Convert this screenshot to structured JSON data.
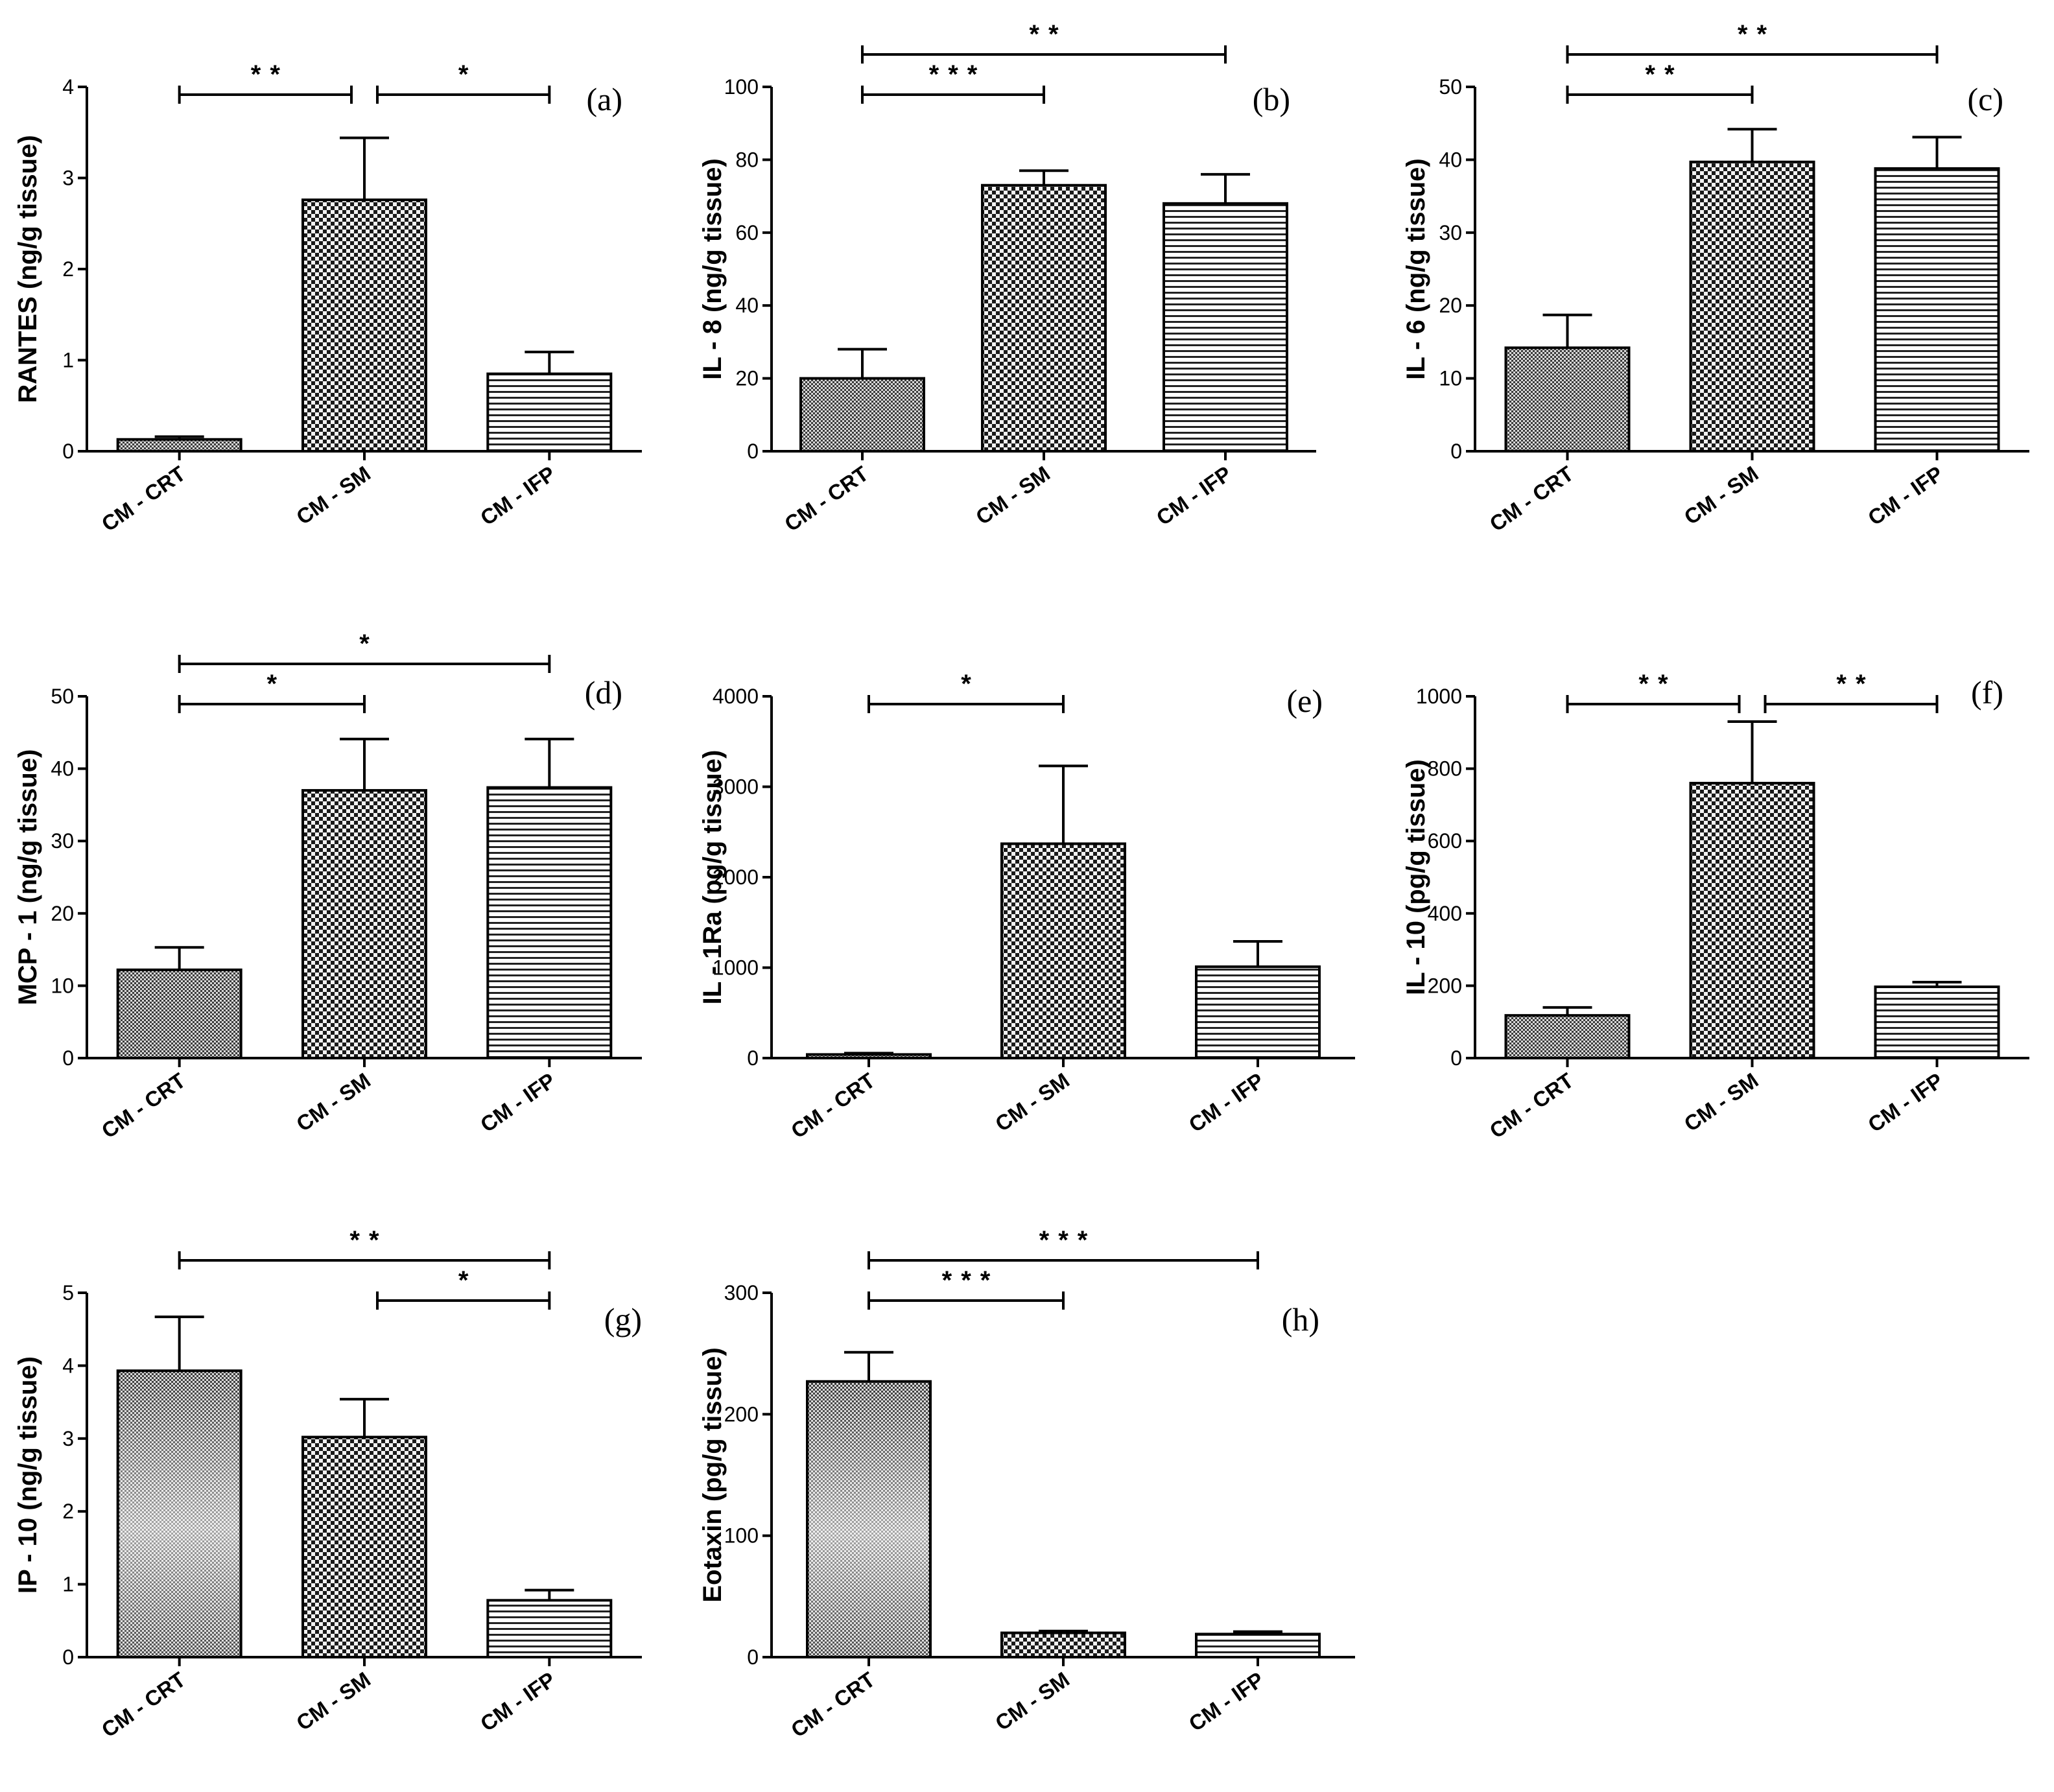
{
  "colors": {
    "ink": "#000000",
    "background": "#ffffff",
    "checker_dark": "#1a1a1a",
    "checker_light": "#f2f2f2",
    "hline": "#222222"
  },
  "chart_data": [
    {
      "type": "bar",
      "panel": "(a)",
      "ylabel": "RANTES (ng/g tissue)",
      "categories": [
        "CM - CRT",
        "CM - SM",
        "CM - IFP"
      ],
      "values": [
        0.13,
        2.76,
        0.85
      ],
      "errors": [
        0.03,
        0.68,
        0.24
      ],
      "ylim": [
        0,
        4
      ],
      "yticks": [
        "0",
        "1",
        "2",
        "3",
        "4"
      ],
      "significance": [
        {
          "from": 0,
          "to": 1,
          "label": "**"
        },
        {
          "from": 1,
          "to": 2,
          "label": "*"
        }
      ]
    },
    {
      "type": "bar",
      "panel": "(b)",
      "ylabel": "IL - 8 (ng/g tissue)",
      "categories": [
        "CM - CRT",
        "CM - SM",
        "CM - IFP"
      ],
      "values": [
        20,
        73,
        68
      ],
      "errors": [
        8,
        4,
        8
      ],
      "ylim": [
        0,
        100
      ],
      "yticks": [
        "0",
        "20",
        "40",
        "60",
        "80",
        "100"
      ],
      "significance": [
        {
          "from": 0,
          "to": 1,
          "label": "***"
        },
        {
          "from": 0,
          "to": 2,
          "label": "**"
        }
      ]
    },
    {
      "type": "bar",
      "panel": "(c)",
      "ylabel": "IL - 6 (ng/g tissue)",
      "categories": [
        "CM - CRT",
        "CM - SM",
        "CM - IFP"
      ],
      "values": [
        14.2,
        39.7,
        38.8
      ],
      "errors": [
        4.5,
        4.5,
        4.3
      ],
      "ylim": [
        0,
        50
      ],
      "yticks": [
        "0",
        "10",
        "20",
        "30",
        "40",
        "50"
      ],
      "significance": [
        {
          "from": 0,
          "to": 1,
          "label": "**"
        },
        {
          "from": 0,
          "to": 2,
          "label": "**"
        }
      ]
    },
    {
      "type": "bar",
      "panel": "(d)",
      "ylabel": "MCP - 1 (ng/g tissue)",
      "categories": [
        "CM - CRT",
        "CM - SM",
        "CM - IFP"
      ],
      "values": [
        12.2,
        37,
        37.4
      ],
      "errors": [
        3.1,
        7.1,
        6.7
      ],
      "ylim": [
        0,
        50
      ],
      "yticks": [
        "0",
        "10",
        "20",
        "30",
        "40",
        "50"
      ],
      "significance": [
        {
          "from": 0,
          "to": 1,
          "label": "*"
        },
        {
          "from": 0,
          "to": 2,
          "label": "*"
        }
      ]
    },
    {
      "type": "bar",
      "panel": "(e)",
      "ylabel": "IL - 1Ra (pg/g tissue)",
      "categories": [
        "CM - CRT",
        "CM - SM",
        "CM - IFP"
      ],
      "values": [
        40,
        2370,
        1010
      ],
      "errors": [
        15,
        860,
        280
      ],
      "ylim": [
        0,
        4000
      ],
      "yticks": [
        "0",
        "1000",
        "2000",
        "3000",
        "4000"
      ],
      "significance": [
        {
          "from": 0,
          "to": 1,
          "label": "*"
        }
      ]
    },
    {
      "type": "bar",
      "panel": "(f)",
      "ylabel": "IL - 10 (pg/g tissue)",
      "categories": [
        "CM - CRT",
        "CM - SM",
        "CM - IFP"
      ],
      "values": [
        118,
        760,
        197
      ],
      "errors": [
        22,
        170,
        13
      ],
      "ylim": [
        0,
        1000
      ],
      "yticks": [
        "0",
        "200",
        "400",
        "600",
        "800",
        "1000"
      ],
      "significance": [
        {
          "from": 0,
          "to": 1,
          "label": "**"
        },
        {
          "from": 1,
          "to": 2,
          "label": "**"
        }
      ]
    },
    {
      "type": "bar",
      "panel": "(g)",
      "ylabel": "IP - 10 (ng/g tissue)",
      "categories": [
        "CM - CRT",
        "CM - SM",
        "CM - IFP"
      ],
      "values": [
        3.93,
        3.02,
        0.78
      ],
      "errors": [
        0.74,
        0.52,
        0.14
      ],
      "ylim": [
        0,
        5
      ],
      "yticks": [
        "0",
        "1",
        "2",
        "3",
        "4",
        "5"
      ],
      "significance": [
        {
          "from": 0,
          "to": 2,
          "label": "**"
        },
        {
          "from": 1,
          "to": 2,
          "label": "*"
        }
      ]
    },
    {
      "type": "bar",
      "panel": "(h)",
      "ylabel": "Eotaxin (pg/g tissue)",
      "categories": [
        "CM - CRT",
        "CM - SM",
        "CM - IFP"
      ],
      "values": [
        227,
        20,
        19
      ],
      "errors": [
        24,
        1.5,
        2
      ],
      "ylim": [
        0,
        300
      ],
      "yticks": [
        "0",
        "100",
        "200",
        "300"
      ],
      "significance": [
        {
          "from": 0,
          "to": 1,
          "label": "***"
        },
        {
          "from": 0,
          "to": 2,
          "label": "***"
        }
      ]
    }
  ]
}
